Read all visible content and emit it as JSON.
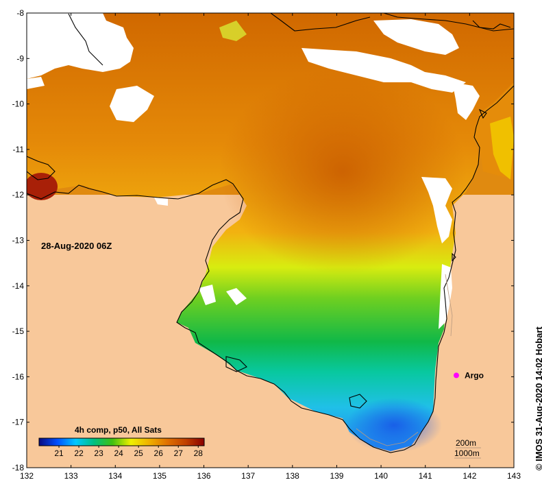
{
  "map": {
    "date_label": "28-Aug-2020 06Z",
    "float_label": "Argo",
    "float_lon": 141.7,
    "float_lat": -15.97,
    "contour_labels": [
      "200m",
      "1000m"
    ],
    "credit": "IMOS 31-Aug-2020 14:02 Hobart",
    "copyright_symbol": "©",
    "lon_range": [
      132,
      143
    ],
    "lat_range": [
      -18,
      -8
    ],
    "x_ticks": [
      132,
      133,
      134,
      135,
      136,
      137,
      138,
      139,
      140,
      141,
      142,
      143
    ],
    "y_ticks": [
      -8,
      -9,
      -10,
      -11,
      -12,
      -13,
      -14,
      -15,
      -16,
      -17,
      -18
    ],
    "colors": {
      "land": "#f8c89a",
      "no_data": "#ffffff",
      "coast": "#000000",
      "argo_marker": "#ff00ff"
    }
  },
  "colorbar": {
    "title": "4h comp, p50, All Sats",
    "range": [
      20,
      28.3
    ],
    "tick_labels": [
      "21",
      "22",
      "23",
      "24",
      "25",
      "26",
      "27",
      "28"
    ],
    "tick_values": [
      21,
      22,
      23,
      24,
      25,
      26,
      27,
      28
    ],
    "colors": [
      "#0a0a80",
      "#0050ff",
      "#00c8ff",
      "#00c080",
      "#40c010",
      "#f0f000",
      "#f0b000",
      "#e07000",
      "#c04000",
      "#8a0000"
    ]
  }
}
